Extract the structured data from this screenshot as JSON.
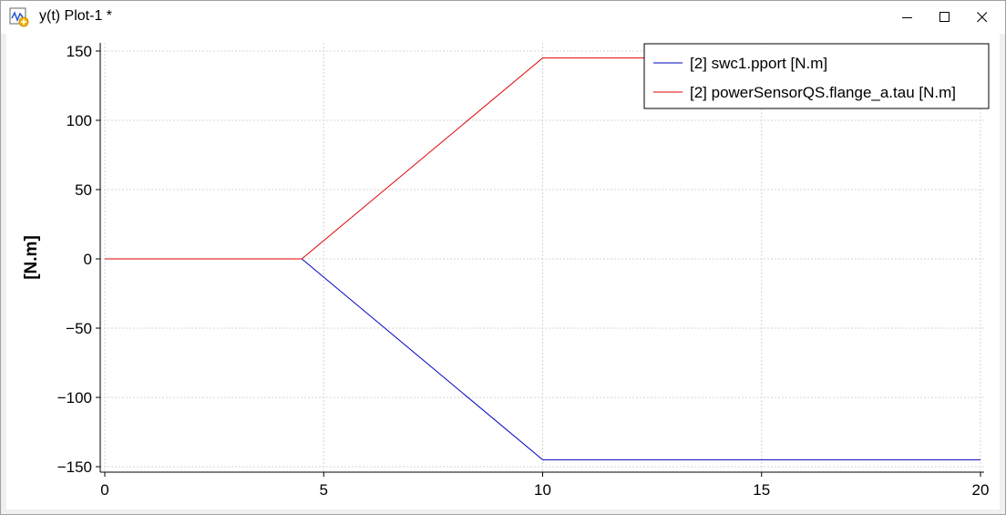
{
  "window": {
    "title": "y(t) Plot-1 *",
    "icons": {
      "app": "plot-window-icon",
      "minimize": "minimize-icon",
      "maximize": "maximize-icon",
      "close": "close-icon"
    }
  },
  "chart_data": {
    "type": "line",
    "ylabel": "[N.m]",
    "xlabel": "",
    "xlim": [
      0,
      20
    ],
    "ylim": [
      -150,
      150
    ],
    "xticks": [
      0,
      5,
      10,
      15,
      20
    ],
    "yticks": [
      150,
      100,
      50,
      0,
      -50,
      -100,
      -150
    ],
    "grid": true,
    "legend_position": "top-right",
    "series": [
      {
        "name": "[2] swc1.pport [N.m]",
        "color": "#0000c0",
        "x": [
          0,
          4.5,
          10,
          20
        ],
        "y": [
          0,
          0,
          -145,
          -145
        ]
      },
      {
        "name": "[2] powerSensorQS.flange_a.tau [N.m]",
        "color": "#e00000",
        "x": [
          0,
          4.5,
          10,
          20
        ],
        "y": [
          0,
          0,
          145,
          145
        ]
      }
    ]
  }
}
